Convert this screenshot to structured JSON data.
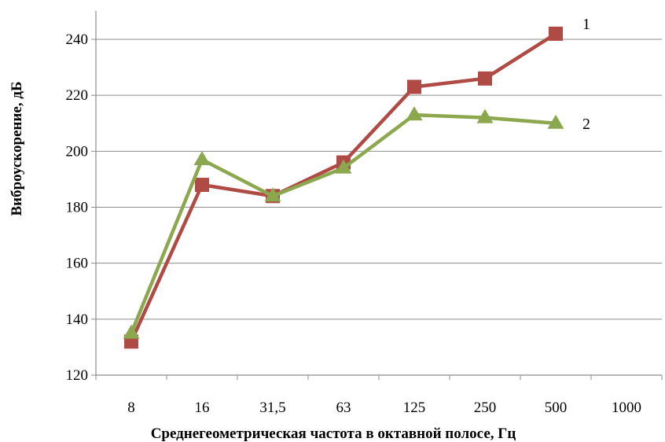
{
  "chart_data": {
    "type": "line",
    "title": "",
    "xlabel": "Среднегеометрическая частота в октавной полосе, Гц",
    "ylabel": "Виброускорение, дБ",
    "categories": [
      "8",
      "16",
      "31,5",
      "63",
      "125",
      "250",
      "500",
      "1000"
    ],
    "ylim": [
      120,
      240
    ],
    "yticks": [
      120,
      140,
      160,
      180,
      200,
      220,
      240
    ],
    "grid": "horizontal",
    "legend": "none",
    "series": [
      {
        "name": "1",
        "marker": "square",
        "color": "#b04a45",
        "values": [
          132,
          188,
          184,
          196,
          223,
          226,
          242,
          null
        ]
      },
      {
        "name": "2",
        "marker": "triangle",
        "color": "#8ca84e",
        "values": [
          135,
          197,
          184,
          194,
          213,
          212,
          210,
          null
        ]
      }
    ]
  }
}
